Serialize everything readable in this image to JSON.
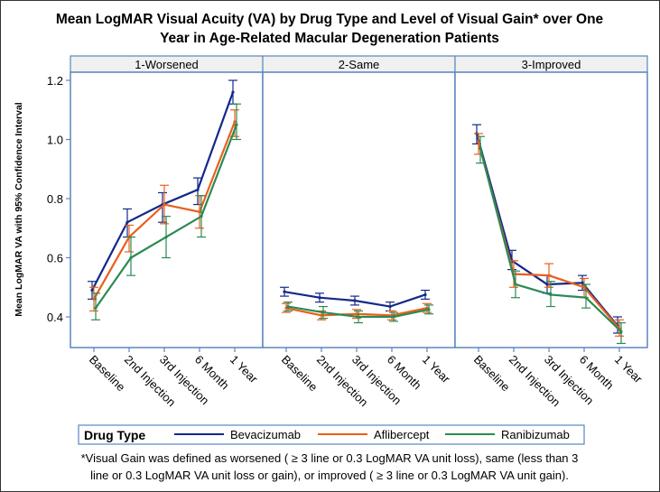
{
  "chart_data": {
    "type": "line",
    "title": "Mean LogMAR Visual Acuity (VA) by Drug Type and Level of Visual Gain* over One Year in Age-Related Macular Degeneration Patients",
    "title_lines": [
      "Mean LogMAR Visual Acuity (VA) by Drug Type and Level of Visual Gain* over One",
      "Year in Age-Related Macular Degeneration Patients"
    ],
    "ylabel": "Mean LogMAR VA with 95% Confidence Interval",
    "xlabel": "",
    "ylim": [
      0.3,
      1.23
    ],
    "yticks": [
      0.4,
      0.6,
      0.8,
      1.0,
      1.2
    ],
    "ytick_labels": [
      "0.4",
      "0.6",
      "0.8",
      "1.0",
      "1.2"
    ],
    "categories": [
      "Baseline",
      "2nd Injection",
      "3rd Injection",
      "6 Month",
      "1 Year"
    ],
    "grid": false,
    "error_bars": "95% confidence interval",
    "legend": {
      "title": "Drug Type",
      "placement": "bottom"
    },
    "footnote_lines": [
      "*Visual Gain was defined as worsened ( ≥ 3 line or 0.3 LogMAR VA unit loss), same (less than 3",
      "line or 0.3 LogMAR VA unit loss or gain), or improved ( ≥ 3 line or 0.3 LogMAR VA unit gain)."
    ],
    "series_styles": [
      {
        "name": "Bevacizumab",
        "color": "#13288a"
      },
      {
        "name": "Aflibercept",
        "color": "#e8601c"
      },
      {
        "name": "Ranibizumab",
        "color": "#2b8a53"
      }
    ],
    "panels": [
      {
        "title": "1-Worsened",
        "series": [
          {
            "name": "Bevacizumab",
            "values": [
              0.49,
              0.72,
              0.78,
              0.83,
              1.16
            ],
            "lower": [
              0.46,
              0.67,
              0.72,
              0.78,
              1.12
            ],
            "upper": [
              0.52,
              0.765,
              0.82,
              0.87,
              1.2
            ]
          },
          {
            "name": "Aflibercept",
            "values": [
              0.46,
              0.67,
              0.78,
              0.755,
              1.06
            ],
            "lower": [
              0.42,
              0.62,
              0.715,
              0.7,
              1.01
            ],
            "upper": [
              0.5,
              0.71,
              0.845,
              0.81,
              1.1
            ]
          },
          {
            "name": "Ranibizumab",
            "values": [
              0.43,
              0.6,
              0.67,
              0.74,
              1.05
            ],
            "lower": [
              0.39,
              0.54,
              0.6,
              0.67,
              1.0
            ],
            "upper": [
              0.48,
              0.67,
              0.74,
              0.81,
              1.12
            ]
          }
        ]
      },
      {
        "title": "2-Same",
        "series": [
          {
            "name": "Bevacizumab",
            "values": [
              0.485,
              0.465,
              0.455,
              0.435,
              0.475
            ],
            "lower": [
              0.47,
              0.45,
              0.44,
              0.42,
              0.46
            ],
            "upper": [
              0.5,
              0.48,
              0.47,
              0.45,
              0.49
            ]
          },
          {
            "name": "Aflibercept",
            "values": [
              0.43,
              0.405,
              0.41,
              0.405,
              0.43
            ],
            "lower": [
              0.415,
              0.39,
              0.395,
              0.39,
              0.415
            ],
            "upper": [
              0.445,
              0.42,
              0.425,
              0.42,
              0.445
            ]
          },
          {
            "name": "Ranibizumab",
            "values": [
              0.435,
              0.415,
              0.4,
              0.4,
              0.425
            ],
            "lower": [
              0.42,
              0.395,
              0.38,
              0.385,
              0.41
            ],
            "upper": [
              0.45,
              0.435,
              0.42,
              0.415,
              0.44
            ]
          }
        ]
      },
      {
        "title": "3-Improved",
        "series": [
          {
            "name": "Bevacizumab",
            "values": [
              1.02,
              0.59,
              0.51,
              0.515,
              0.37
            ],
            "lower": [
              0.985,
              0.56,
              0.48,
              0.49,
              0.345
            ],
            "upper": [
              1.05,
              0.625,
              0.54,
              0.54,
              0.4
            ]
          },
          {
            "name": "Aflibercept",
            "values": [
              0.99,
              0.545,
              0.54,
              0.5,
              0.36
            ],
            "lower": [
              0.95,
              0.5,
              0.5,
              0.465,
              0.335
            ],
            "upper": [
              1.02,
              0.59,
              0.58,
              0.53,
              0.39
            ]
          },
          {
            "name": "Ranibizumab",
            "values": [
              0.97,
              0.51,
              0.475,
              0.465,
              0.35
            ],
            "lower": [
              0.92,
              0.465,
              0.435,
              0.43,
              0.31
            ],
            "upper": [
              1.01,
              0.555,
              0.52,
              0.51,
              0.38
            ]
          }
        ]
      }
    ]
  }
}
